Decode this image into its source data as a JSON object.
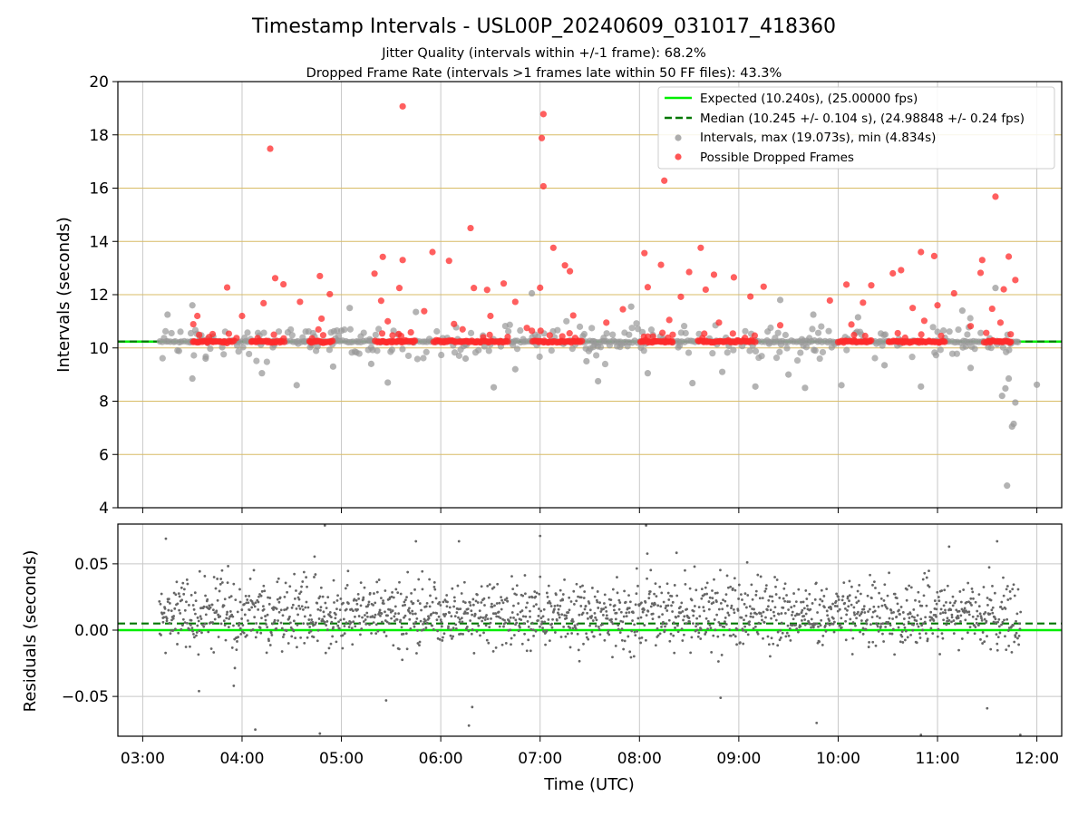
{
  "figure": {
    "title": "Timestamp Intervals - USL00P_20240609_031017_418360",
    "subtitle_1": "Jitter Quality (intervals within +/-1 frame): 68.2%",
    "subtitle_2": "Dropped Frame Rate (intervals >1 frames late within 50 FF files): 43.3%"
  },
  "colors": {
    "expected": "#00ee00",
    "median": "#007700",
    "intervals": "#999999",
    "dropped": "#ff2a2a",
    "residuals": "#666666",
    "hgrid_top": "#d8bc66",
    "grid": "#c8c8c8"
  },
  "chart_data": [
    {
      "type": "scatter",
      "panel": "top",
      "ylabel": "Intervals (seconds)",
      "ylim": [
        4,
        20
      ],
      "yticks": [
        "4",
        "6",
        "8",
        "10",
        "12",
        "14",
        "16",
        "18",
        "20"
      ],
      "x_range_utc": [
        "02:45",
        "12:15"
      ],
      "grid": true,
      "legend_placement": "top-right",
      "legend": [
        {
          "label": "Expected (10.240s), (25.00000 fps)",
          "style": "solid-line",
          "color": "#00ee00"
        },
        {
          "label": "Median (10.245 +/- 0.104 s), (24.98848 +/- 0.24 fps)",
          "style": "dashed-line",
          "color": "#007700"
        },
        {
          "label": "Intervals, max (19.073s), min (4.834s)",
          "style": "marker",
          "color": "#999999"
        },
        {
          "label": "Possible Dropped Frames",
          "style": "marker",
          "color": "#ff2a2a"
        }
      ],
      "lines": {
        "expected": 10.24,
        "median": 10.245
      },
      "series": [
        {
          "name": "Possible Dropped Frames",
          "points": [
            [
              "04:17",
              17.48
            ],
            [
              "05:37",
              19.07
            ],
            [
              "07:02",
              18.78
            ],
            [
              "07:01",
              17.88
            ],
            [
              "07:02",
              16.07
            ],
            [
              "08:15",
              16.28
            ],
            [
              "11:35",
              15.68
            ],
            [
              "06:18",
              14.5
            ],
            [
              "07:08",
              13.76
            ],
            [
              "08:37",
              13.76
            ],
            [
              "05:55",
              13.6
            ],
            [
              "08:03",
              13.56
            ],
            [
              "10:50",
              13.6
            ],
            [
              "10:58",
              13.45
            ],
            [
              "11:43",
              13.43
            ],
            [
              "05:25",
              13.42
            ],
            [
              "05:37",
              13.3
            ],
            [
              "11:27",
              13.3
            ],
            [
              "07:15",
              13.1
            ],
            [
              "08:13",
              13.12
            ],
            [
              "06:05",
              13.27
            ],
            [
              "07:18",
              12.88
            ],
            [
              "10:38",
              12.92
            ],
            [
              "10:33",
              12.8
            ],
            [
              "05:20",
              12.79
            ],
            [
              "04:47",
              12.7
            ],
            [
              "04:20",
              12.62
            ],
            [
              "04:25",
              12.39
            ],
            [
              "08:30",
              12.85
            ],
            [
              "08:45",
              12.75
            ],
            [
              "11:26",
              12.82
            ],
            [
              "11:47",
              12.55
            ],
            [
              "03:51",
              12.27
            ],
            [
              "07:00",
              12.26
            ],
            [
              "05:35",
              12.25
            ],
            [
              "06:20",
              12.25
            ],
            [
              "06:28",
              12.18
            ],
            [
              "06:38",
              12.42
            ],
            [
              "08:05",
              12.28
            ],
            [
              "08:57",
              12.65
            ],
            [
              "09:15",
              12.3
            ],
            [
              "10:05",
              12.38
            ],
            [
              "10:20",
              12.35
            ],
            [
              "11:10",
              12.05
            ],
            [
              "11:40",
              12.2
            ],
            [
              "03:33",
              11.2
            ],
            [
              "04:13",
              11.68
            ],
            [
              "04:35",
              11.73
            ],
            [
              "04:53",
              12.02
            ],
            [
              "05:24",
              11.77
            ],
            [
              "05:50",
              11.38
            ],
            [
              "06:30",
              11.2
            ],
            [
              "06:45",
              11.73
            ],
            [
              "07:20",
              11.22
            ],
            [
              "07:50",
              11.45
            ],
            [
              "08:25",
              11.92
            ],
            [
              "08:40",
              12.19
            ],
            [
              "09:07",
              11.93
            ],
            [
              "09:55",
              11.78
            ],
            [
              "10:15",
              11.7
            ],
            [
              "10:45",
              11.5
            ],
            [
              "11:00",
              11.6
            ],
            [
              "11:33",
              11.47
            ],
            [
              "04:00",
              11.2
            ],
            [
              "04:48",
              11.1
            ],
            [
              "05:28",
              11.0
            ],
            [
              "06:08",
              10.9
            ],
            [
              "06:52",
              10.75
            ],
            [
              "07:40",
              10.95
            ],
            [
              "08:18",
              11.05
            ],
            [
              "08:48",
              10.95
            ],
            [
              "09:25",
              10.85
            ],
            [
              "10:08",
              10.88
            ],
            [
              "10:52",
              11.02
            ],
            [
              "11:20",
              10.82
            ],
            [
              "11:38",
              10.95
            ]
          ],
          "baseline_band": {
            "value": 10.24,
            "segments": [
              [
                "03:30",
                "03:55"
              ],
              [
                "04:05",
                "04:25"
              ],
              [
                "04:40",
                "04:55"
              ],
              [
                "05:20",
                "05:45"
              ],
              [
                "05:55",
                "06:40"
              ],
              [
                "06:55",
                "07:25"
              ],
              [
                "08:00",
                "08:20"
              ],
              [
                "08:35",
                "09:10"
              ],
              [
                "10:00",
                "10:20"
              ],
              [
                "10:30",
                "11:05"
              ],
              [
                "11:28",
                "11:45"
              ]
            ]
          }
        },
        {
          "name": "Intervals, max (19.073s), min (4.834s)",
          "points": [
            [
              "11:42",
              4.83
            ],
            [
              "11:45",
              7.05
            ],
            [
              "11:46",
              7.15
            ],
            [
              "11:47",
              7.95
            ],
            [
              "11:41",
              8.48
            ],
            [
              "11:39",
              8.2
            ],
            [
              "11:43",
              8.85
            ],
            [
              "03:30",
              8.85
            ],
            [
              "04:33",
              8.6
            ],
            [
              "05:28",
              8.7
            ],
            [
              "06:32",
              8.52
            ],
            [
              "07:35",
              8.75
            ],
            [
              "08:32",
              8.68
            ],
            [
              "09:10",
              8.55
            ],
            [
              "09:40",
              8.5
            ],
            [
              "10:02",
              8.6
            ],
            [
              "10:50",
              8.55
            ],
            [
              "12:00",
              8.62
            ],
            [
              "03:38",
              9.6
            ],
            [
              "04:12",
              9.05
            ],
            [
              "04:55",
              9.3
            ],
            [
              "05:18",
              9.4
            ],
            [
              "06:15",
              9.6
            ],
            [
              "06:45",
              9.2
            ],
            [
              "07:28",
              9.5
            ],
            [
              "08:05",
              9.05
            ],
            [
              "08:50",
              9.1
            ],
            [
              "09:30",
              9.0
            ],
            [
              "10:28",
              9.35
            ],
            [
              "11:20",
              9.25
            ],
            [
              "03:15",
              11.25
            ],
            [
              "03:30",
              11.6
            ],
            [
              "05:05",
              11.5
            ],
            [
              "05:45",
              11.35
            ],
            [
              "06:55",
              12.05
            ],
            [
              "07:55",
              11.55
            ],
            [
              "09:25",
              11.8
            ],
            [
              "09:45",
              11.25
            ],
            [
              "10:12",
              11.15
            ],
            [
              "11:15",
              11.4
            ],
            [
              "11:35",
              12.25
            ]
          ],
          "baseline_band": {
            "value": 10.24,
            "segments": [
              [
                "03:10",
                "11:50"
              ]
            ]
          }
        }
      ]
    },
    {
      "type": "scatter",
      "panel": "bottom",
      "xlabel": "Time (UTC)",
      "ylabel": "Residuals (seconds)",
      "ylim": [
        -0.08,
        0.08
      ],
      "yticks": [
        "−0.05",
        "0.00",
        "0.05"
      ],
      "xticks": [
        "03:00",
        "04:00",
        "05:00",
        "06:00",
        "07:00",
        "08:00",
        "09:00",
        "10:00",
        "11:00",
        "12:00"
      ],
      "x_range_utc": [
        "02:45",
        "12:15"
      ],
      "grid": true,
      "lines": {
        "expected": 0.0,
        "median": 0.005
      },
      "series": [
        {
          "name": "Residuals",
          "distribution": "approximately 1800 points from 03:10 to 11:50, spread mostly between -0.03 and 0.05 seconds",
          "points": [
            [
              "03:14",
              0.069
            ],
            [
              "04:08",
              -0.075
            ],
            [
              "04:47",
              -0.078
            ],
            [
              "04:50",
              0.079
            ],
            [
              "05:45",
              0.067
            ],
            [
              "06:11",
              0.067
            ],
            [
              "06:17",
              -0.072
            ],
            [
              "07:00",
              0.071
            ],
            [
              "08:04",
              0.079
            ],
            [
              "09:47",
              -0.07
            ],
            [
              "10:50",
              -0.079
            ],
            [
              "11:07",
              0.063
            ],
            [
              "11:36",
              0.067
            ],
            [
              "11:30",
              -0.059
            ],
            [
              "06:19",
              -0.058
            ],
            [
              "08:49",
              -0.051
            ],
            [
              "05:27",
              -0.053
            ],
            [
              "11:50",
              -0.079
            ],
            [
              "03:34",
              -0.046
            ],
            [
              "03:55",
              -0.042
            ]
          ]
        }
      ]
    }
  ]
}
